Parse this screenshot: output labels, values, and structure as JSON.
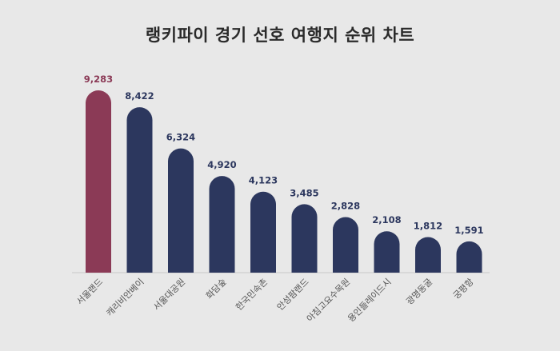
{
  "chart_data": {
    "type": "bar",
    "title": "랭키파이 경기 선호 여행지 순위 차트",
    "categories": [
      "서울랜드",
      "캐리비안베이",
      "서울대공원",
      "화담숲",
      "한국민속촌",
      "안성팜랜드",
      "아침고요수목원",
      "용인들레이드시",
      "광명동굴",
      "궁평항"
    ],
    "values": [
      9283,
      8422,
      6324,
      4920,
      4123,
      3485,
      2828,
      2108,
      1812,
      1591
    ],
    "value_labels": [
      "9,283",
      "8,422",
      "6,324",
      "4,920",
      "4,123",
      "3,485",
      "2,828",
      "2,108",
      "1,812",
      "1,591"
    ],
    "ylim": [
      0,
      9283
    ],
    "highlight_index": 0,
    "grid": false,
    "legend": "none",
    "colors": {
      "highlight_bar": "#8b3a56",
      "bar": "#2c375e",
      "highlight_label": "#8b3a56",
      "label": "#2c375e",
      "category_text": "#555555",
      "baseline": "#c8c8c8"
    }
  }
}
